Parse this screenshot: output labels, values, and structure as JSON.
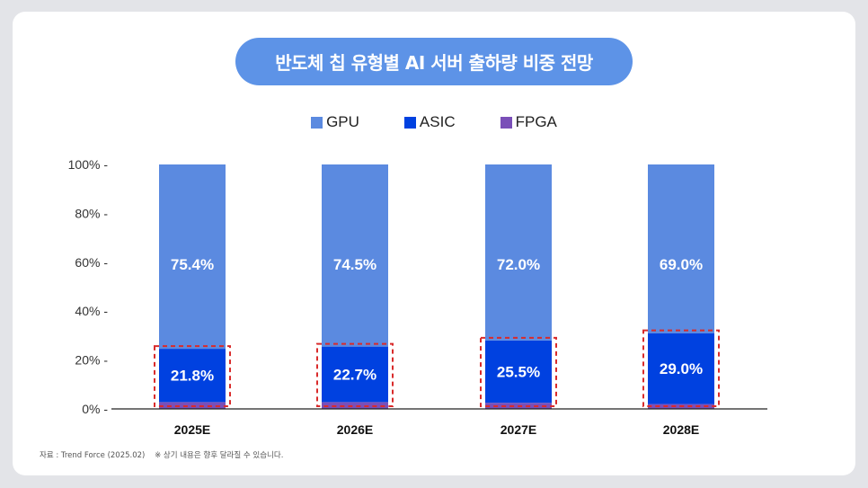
{
  "title": "반도체 칩 유형별 AI 서버 출하량 비중 전망",
  "footnote": {
    "source": "자료 : Trend Force (2025.02)",
    "note": "※ 상기 내용은 향후 달라질 수 있습니다."
  },
  "colors": {
    "gpu": "#5b8ae0",
    "asic": "#0041e0",
    "fpga": "#7a4fb8",
    "highlight": "#d92b2b",
    "title_bg": "#5d93e7"
  },
  "chart_data": {
    "type": "bar",
    "stacked": true,
    "categories": [
      "2025E",
      "2026E",
      "2027E",
      "2028E"
    ],
    "series": [
      {
        "name": "GPU",
        "values": [
          75.4,
          74.5,
          72.0,
          69.0
        ],
        "labels": [
          "75.4%",
          "74.5%",
          "72.0%",
          "69.0%"
        ]
      },
      {
        "name": "ASIC",
        "values": [
          21.8,
          22.7,
          25.5,
          29.0
        ],
        "labels": [
          "21.8%",
          "22.7%",
          "25.5%",
          "29.0%"
        ]
      },
      {
        "name": "FPGA",
        "values": [
          2.8,
          2.8,
          2.5,
          2.0
        ]
      }
    ],
    "ylim": [
      0,
      100
    ],
    "yticks": [
      "0% -",
      "20% -",
      "40% -",
      "60% -",
      "80% -",
      "100% -"
    ],
    "legend_position": "top-center",
    "highlight": "ASIC segment outlined with red dashed box"
  }
}
